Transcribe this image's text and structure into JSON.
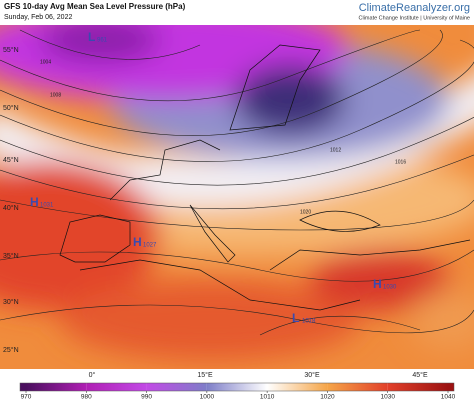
{
  "header": {
    "title": "GFS 10-day Avg Mean Sea Level Pressure (hPa)",
    "subtitle": "Sunday, Feb 06, 2022",
    "brand": "ClimateReanalyzer.org",
    "credit": "Climate Change Institute | University of Maine"
  },
  "map": {
    "lat_labels": [
      "55°N",
      "50°N",
      "45°N",
      "40°N",
      "35°N",
      "30°N",
      "25°N"
    ],
    "lon_labels": [
      "0°",
      "15°E",
      "30°E",
      "45°E"
    ],
    "centers": [
      {
        "symbol": "L",
        "value": "961"
      },
      {
        "symbol": "H",
        "value": "1031"
      },
      {
        "symbol": "H",
        "value": "1027"
      },
      {
        "symbol": "H",
        "value": "1030"
      },
      {
        "symbol": "L",
        "value": "1018"
      }
    ],
    "contour_labels": [
      "1004",
      "1008",
      "1012",
      "1016",
      "1020"
    ]
  },
  "colorbar": {
    "range": [
      970,
      1040
    ],
    "ticks": [
      970,
      980,
      990,
      1000,
      1010,
      1020,
      1030,
      1040
    ],
    "colors": [
      "#4a0f5e",
      "#b01fb4",
      "#c24ae6",
      "#7e7ec8",
      "#ffffff",
      "#f5a548",
      "#e2402a",
      "#9c1212"
    ]
  }
}
